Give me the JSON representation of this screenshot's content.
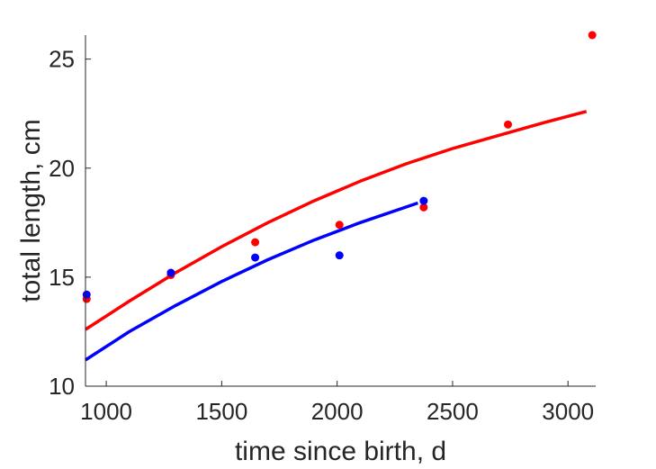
{
  "chart_data": {
    "type": "scatter",
    "xlabel": "time since birth, d",
    "ylabel": "total length, cm",
    "xlim": [
      910,
      3120
    ],
    "ylim": [
      10,
      26.1
    ],
    "xticks": [
      1000,
      1500,
      2000,
      2500,
      3000
    ],
    "yticks": [
      10,
      15,
      20,
      25
    ],
    "grid": false,
    "series": [
      {
        "color": "#ff0000",
        "points": [
          {
            "x": 915,
            "y": 14.0
          },
          {
            "x": 1280,
            "y": 15.1
          },
          {
            "x": 1645,
            "y": 16.6
          },
          {
            "x": 2010,
            "y": 17.4
          },
          {
            "x": 2375,
            "y": 18.2
          },
          {
            "x": 2740,
            "y": 22.0
          },
          {
            "x": 3105,
            "y": 26.1
          }
        ],
        "fit_curve": {
          "x": [
            910,
            1100,
            1300,
            1500,
            1700,
            1900,
            2100,
            2300,
            2500,
            2700,
            2900,
            3080
          ],
          "y": [
            12.6,
            13.9,
            15.2,
            16.4,
            17.5,
            18.5,
            19.4,
            20.2,
            20.9,
            21.5,
            22.1,
            22.6
          ]
        }
      },
      {
        "color": "#0000ff",
        "points": [
          {
            "x": 915,
            "y": 14.2
          },
          {
            "x": 1280,
            "y": 15.2
          },
          {
            "x": 1645,
            "y": 15.9
          },
          {
            "x": 2010,
            "y": 16.0
          },
          {
            "x": 2375,
            "y": 18.5
          }
        ],
        "fit_curve": {
          "x": [
            910,
            1100,
            1300,
            1500,
            1700,
            1900,
            2100,
            2350
          ],
          "y": [
            11.2,
            12.5,
            13.7,
            14.8,
            15.8,
            16.7,
            17.5,
            18.4
          ]
        }
      }
    ]
  }
}
